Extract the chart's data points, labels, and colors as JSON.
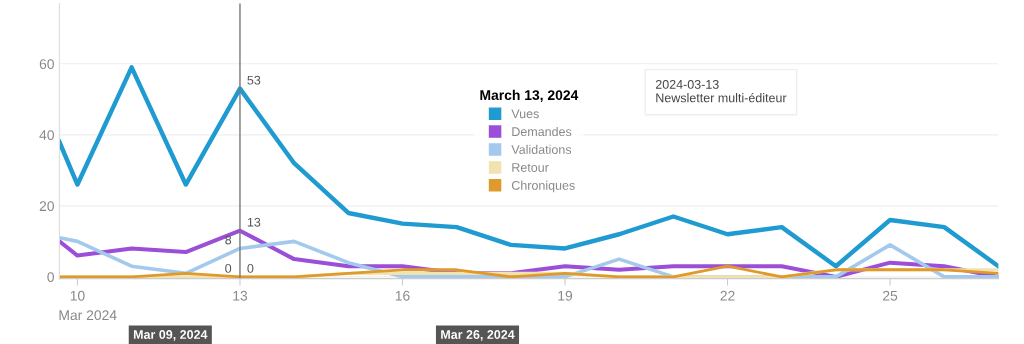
{
  "chart_data": {
    "type": "line",
    "x": [
      "2024-03-09T16:00",
      "2024-03-10",
      "2024-03-11",
      "2024-03-12",
      "2024-03-13",
      "2024-03-14",
      "2024-03-15",
      "2024-03-16",
      "2024-03-17",
      "2024-03-18",
      "2024-03-19",
      "2024-03-20",
      "2024-03-21",
      "2024-03-22",
      "2024-03-23",
      "2024-03-24",
      "2024-03-25",
      "2024-03-26",
      "2024-03-27"
    ],
    "series": [
      {
        "name": "Vues",
        "color": "#1f9bd1",
        "values": [
          38,
          26,
          59,
          26,
          53,
          32,
          18,
          15,
          14,
          9,
          8,
          12,
          17,
          12,
          14,
          3,
          16,
          14,
          3
        ],
        "value_labels": [
          null,
          null,
          null,
          null,
          "53",
          null,
          null,
          null,
          null,
          null,
          null,
          null,
          null,
          null,
          null,
          null,
          null,
          null,
          null
        ]
      },
      {
        "name": "Demandes",
        "color": "#9b4fd8",
        "values": [
          10,
          6,
          8,
          7,
          13,
          5,
          3,
          3,
          1,
          1,
          3,
          2,
          3,
          3,
          3,
          0,
          4,
          3,
          0
        ],
        "value_labels": [
          null,
          null,
          null,
          null,
          "13",
          null,
          null,
          null,
          null,
          null,
          null,
          null,
          null,
          null,
          null,
          null,
          null,
          null,
          null
        ]
      },
      {
        "name": "Validations",
        "color": "#a3c9ec",
        "values": [
          11,
          10,
          3,
          1,
          8,
          10,
          4,
          0,
          0,
          0,
          0,
          5,
          0,
          0,
          0,
          0,
          9,
          0,
          0
        ],
        "value_labels": [
          null,
          null,
          null,
          null,
          "8",
          null,
          null,
          null,
          null,
          null,
          null,
          null,
          null,
          null,
          null,
          null,
          null,
          null,
          null
        ]
      },
      {
        "name": "Retour",
        "color": "#f2e2b0",
        "values": [
          0,
          0,
          0,
          0,
          0,
          0,
          1,
          1,
          1,
          1,
          1,
          0,
          0,
          0,
          0,
          2,
          2,
          2,
          2
        ],
        "value_labels": [
          null,
          null,
          null,
          null,
          "0",
          null,
          null,
          null,
          null,
          null,
          null,
          null,
          null,
          null,
          null,
          null,
          null,
          null,
          null
        ]
      },
      {
        "name": "Chroniques",
        "color": "#e09a2c",
        "values": [
          0,
          0,
          0,
          1,
          0,
          0,
          1,
          2,
          2,
          0,
          1,
          0,
          0,
          3,
          0,
          2,
          2,
          2,
          1
        ],
        "value_labels": [
          null,
          null,
          null,
          null,
          "0",
          null,
          null,
          null,
          null,
          null,
          null,
          null,
          null,
          null,
          null,
          null,
          null,
          null,
          null
        ]
      }
    ],
    "xlim": [
      "2024-03-09T16:00",
      "2024-03-27"
    ],
    "xticks": [
      {
        "value": "2024-03-10",
        "label": "10"
      },
      {
        "value": "2024-03-13",
        "label": "13"
      },
      {
        "value": "2024-03-16",
        "label": "16"
      },
      {
        "value": "2024-03-19",
        "label": "19"
      },
      {
        "value": "2024-03-22",
        "label": "22"
      },
      {
        "value": "2024-03-25",
        "label": "25"
      }
    ],
    "ylim": [
      -0.5,
      77
    ],
    "yticks": [
      0,
      20,
      40,
      60
    ],
    "grid": "y",
    "legend": "center",
    "legend_title": "March 13, 2024",
    "marker": "none",
    "line_style": "solid",
    "ref_lines": [
      {
        "axis": "x",
        "value": "2024-03-13",
        "label": null,
        "color": "#777777"
      }
    ],
    "annotations": [
      "Mar 2024",
      "Mar 09, 2024",
      "Mar 26, 2024",
      "2024-03-13",
      "Newsletter multi-éditeur"
    ]
  }
}
